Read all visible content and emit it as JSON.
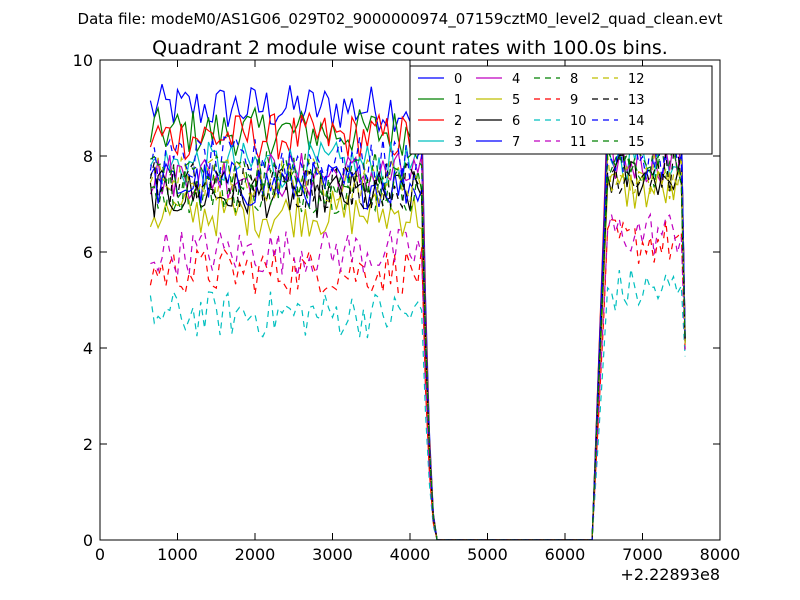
{
  "chart_data": {
    "type": "line",
    "suptitle": "Data file: modeM0/AS1G06_029T02_9000000974_07159cztM0_level2_quad_clean.evt",
    "title": "Quadrant 2 module wise count rates with 100.0s bins.",
    "xlabel": "",
    "ylabel": "",
    "x_offset_label": "+2.22893e8",
    "xlim": [
      0,
      8000
    ],
    "ylim": [
      0,
      10
    ],
    "x_ticks": [
      "0",
      "1000",
      "2000",
      "3000",
      "4000",
      "5000",
      "6000",
      "7000",
      "8000"
    ],
    "y_ticks": [
      "0",
      "2",
      "4",
      "6",
      "8",
      "10"
    ],
    "legend_position": "top-right",
    "gap": {
      "off_start": 4150,
      "zero_start": 4350,
      "zero_end": 6350,
      "on_end": 6550
    },
    "x_start": 650,
    "x_step": 50,
    "x_end": 7550,
    "series": [
      {
        "name": "0",
        "color": "#0000ff",
        "dash": "solid",
        "mean_a": 9.0,
        "mean_b": 8.4
      },
      {
        "name": "1",
        "color": "#008000",
        "dash": "solid",
        "mean_a": 8.5,
        "mean_b": 8.7
      },
      {
        "name": "2",
        "color": "#ff0000",
        "dash": "solid",
        "mean_a": 8.4,
        "mean_b": 8.9
      },
      {
        "name": "3",
        "color": "#00bfbf",
        "dash": "solid",
        "mean_a": 7.8,
        "mean_b": 8.0
      },
      {
        "name": "4",
        "color": "#bf00bf",
        "dash": "solid",
        "mean_a": 7.6,
        "mean_b": 7.9
      },
      {
        "name": "5",
        "color": "#bfbf00",
        "dash": "solid",
        "mean_a": 6.8,
        "mean_b": 7.3
      },
      {
        "name": "6",
        "color": "#000000",
        "dash": "solid",
        "mean_a": 7.2,
        "mean_b": 7.6
      },
      {
        "name": "7",
        "color": "#0000ff",
        "dash": "solid",
        "mean_a": 7.4,
        "mean_b": 8.6
      },
      {
        "name": "8",
        "color": "#008000",
        "dash": "dashed",
        "mean_a": 7.3,
        "mean_b": 7.8
      },
      {
        "name": "9",
        "color": "#ff0000",
        "dash": "dashed",
        "mean_a": 5.6,
        "mean_b": 6.2
      },
      {
        "name": "10",
        "color": "#00bfbf",
        "dash": "dashed",
        "mean_a": 4.7,
        "mean_b": 5.2
      },
      {
        "name": "11",
        "color": "#bf00bf",
        "dash": "dashed",
        "mean_a": 6.0,
        "mean_b": 6.4
      },
      {
        "name": "12",
        "color": "#bfbf00",
        "dash": "dashed",
        "mean_a": 7.5,
        "mean_b": 7.6
      },
      {
        "name": "13",
        "color": "#000000",
        "dash": "dashed",
        "mean_a": 7.4,
        "mean_b": 7.7
      },
      {
        "name": "14",
        "color": "#0000ff",
        "dash": "dashed",
        "mean_a": 7.9,
        "mean_b": 8.0
      },
      {
        "name": "15",
        "color": "#008000",
        "dash": "dashed",
        "mean_a": 7.6,
        "mean_b": 7.9
      }
    ]
  }
}
